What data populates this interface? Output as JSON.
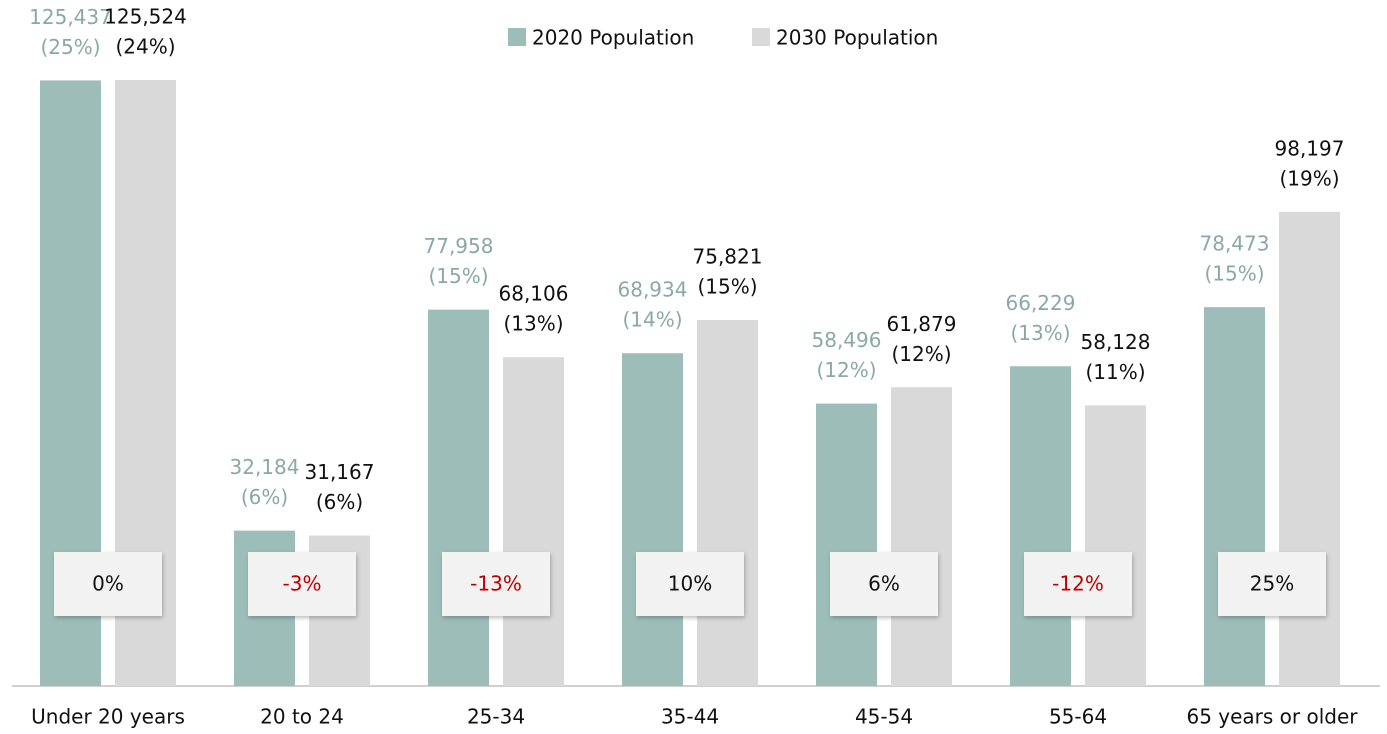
{
  "chart_data": {
    "type": "bar",
    "categories": [
      "Under 20 years",
      "20 to 24",
      "25-34",
      "35-44",
      "45-54",
      "55-64",
      "65 years or older"
    ],
    "series": [
      {
        "name": "2020 Population",
        "color": "#9dbdb9",
        "label_color": "#8aa9a6",
        "values": [
          125437,
          32184,
          77958,
          68934,
          58496,
          66229,
          78473
        ],
        "value_labels": [
          "125,437",
          "32,184",
          "77,958",
          "68,934",
          "58,496",
          "66,229",
          "78,473"
        ],
        "shares": [
          25,
          6,
          15,
          14,
          12,
          13,
          15
        ],
        "share_labels": [
          "(25%)",
          "(6%)",
          "(15%)",
          "(14%)",
          "(12%)",
          "(13%)",
          "(15%)"
        ]
      },
      {
        "name": "2030 Population",
        "color": "#d9d9d9",
        "label_color": "#111111",
        "values": [
          125524,
          31167,
          68106,
          75821,
          61879,
          58128,
          98197
        ],
        "value_labels": [
          "125,524",
          "31,167",
          "68,106",
          "75,821",
          "61,879",
          "58,128",
          "98,197"
        ],
        "shares": [
          24,
          6,
          13,
          15,
          12,
          11,
          19
        ],
        "share_labels": [
          "(24%)",
          "(6%)",
          "(13%)",
          "(15%)",
          "(12%)",
          "(11%)",
          "(19%)"
        ]
      }
    ],
    "changes": [
      0,
      -3,
      -13,
      10,
      6,
      -12,
      25
    ],
    "change_labels": [
      "0%",
      "-3%",
      "-13%",
      "10%",
      "6%",
      "-12%",
      "25%"
    ],
    "negative_color": "#c00000",
    "legend": "top"
  }
}
